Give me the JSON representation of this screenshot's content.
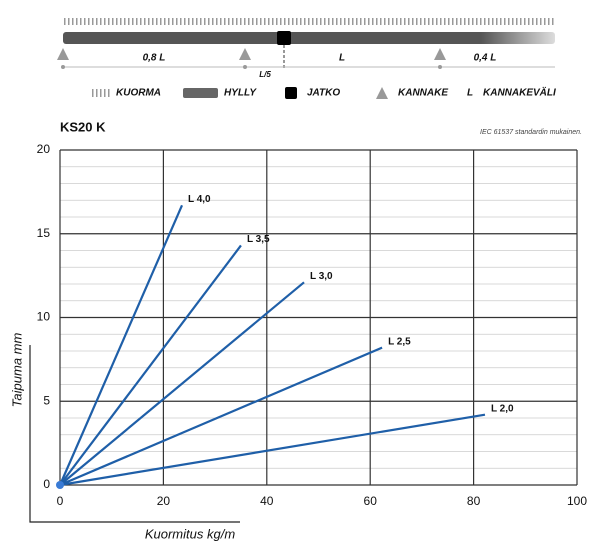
{
  "diagram": {
    "spans": [
      "0,8 L",
      "L",
      "0,4 L"
    ],
    "extension_label": "L/5"
  },
  "legend": [
    {
      "label": "KUORMA"
    },
    {
      "label": "HYLLY"
    },
    {
      "label": "JATKO"
    },
    {
      "label": "KANNAKE"
    },
    {
      "symbol": "L",
      "label": "KANNAKEVÄLI"
    }
  ],
  "chart_data": {
    "type": "line",
    "title": "KS20 K",
    "note": "IEC 61537 standardin mukainen.",
    "x_label": "Kuormitus kg/m",
    "y_label": "Taipuma mm",
    "xlim": [
      0,
      100
    ],
    "xticks": [
      0,
      20,
      40,
      60,
      80,
      100
    ],
    "ylim": [
      0,
      20
    ],
    "yticks": [
      0,
      5,
      10,
      15,
      20
    ],
    "grid": true,
    "series": [
      {
        "name": "L 4,0",
        "color": "#1f5fa8",
        "x": [
          0,
          23.6
        ],
        "values": [
          0,
          16.7
        ]
      },
      {
        "name": "L 3,5",
        "color": "#1f5fa8",
        "x": [
          0,
          35
        ],
        "values": [
          0,
          14.3
        ]
      },
      {
        "name": "L 3,0",
        "color": "#1f5fa8",
        "x": [
          0,
          47.2
        ],
        "values": [
          0,
          12.1
        ]
      },
      {
        "name": "L 2,5",
        "color": "#1f5fa8",
        "x": [
          0,
          62.3
        ],
        "values": [
          0,
          8.2
        ]
      },
      {
        "name": "L 2,0",
        "color": "#1f5fa8",
        "x": [
          0,
          82.2
        ],
        "values": [
          0,
          4.2
        ]
      }
    ]
  }
}
